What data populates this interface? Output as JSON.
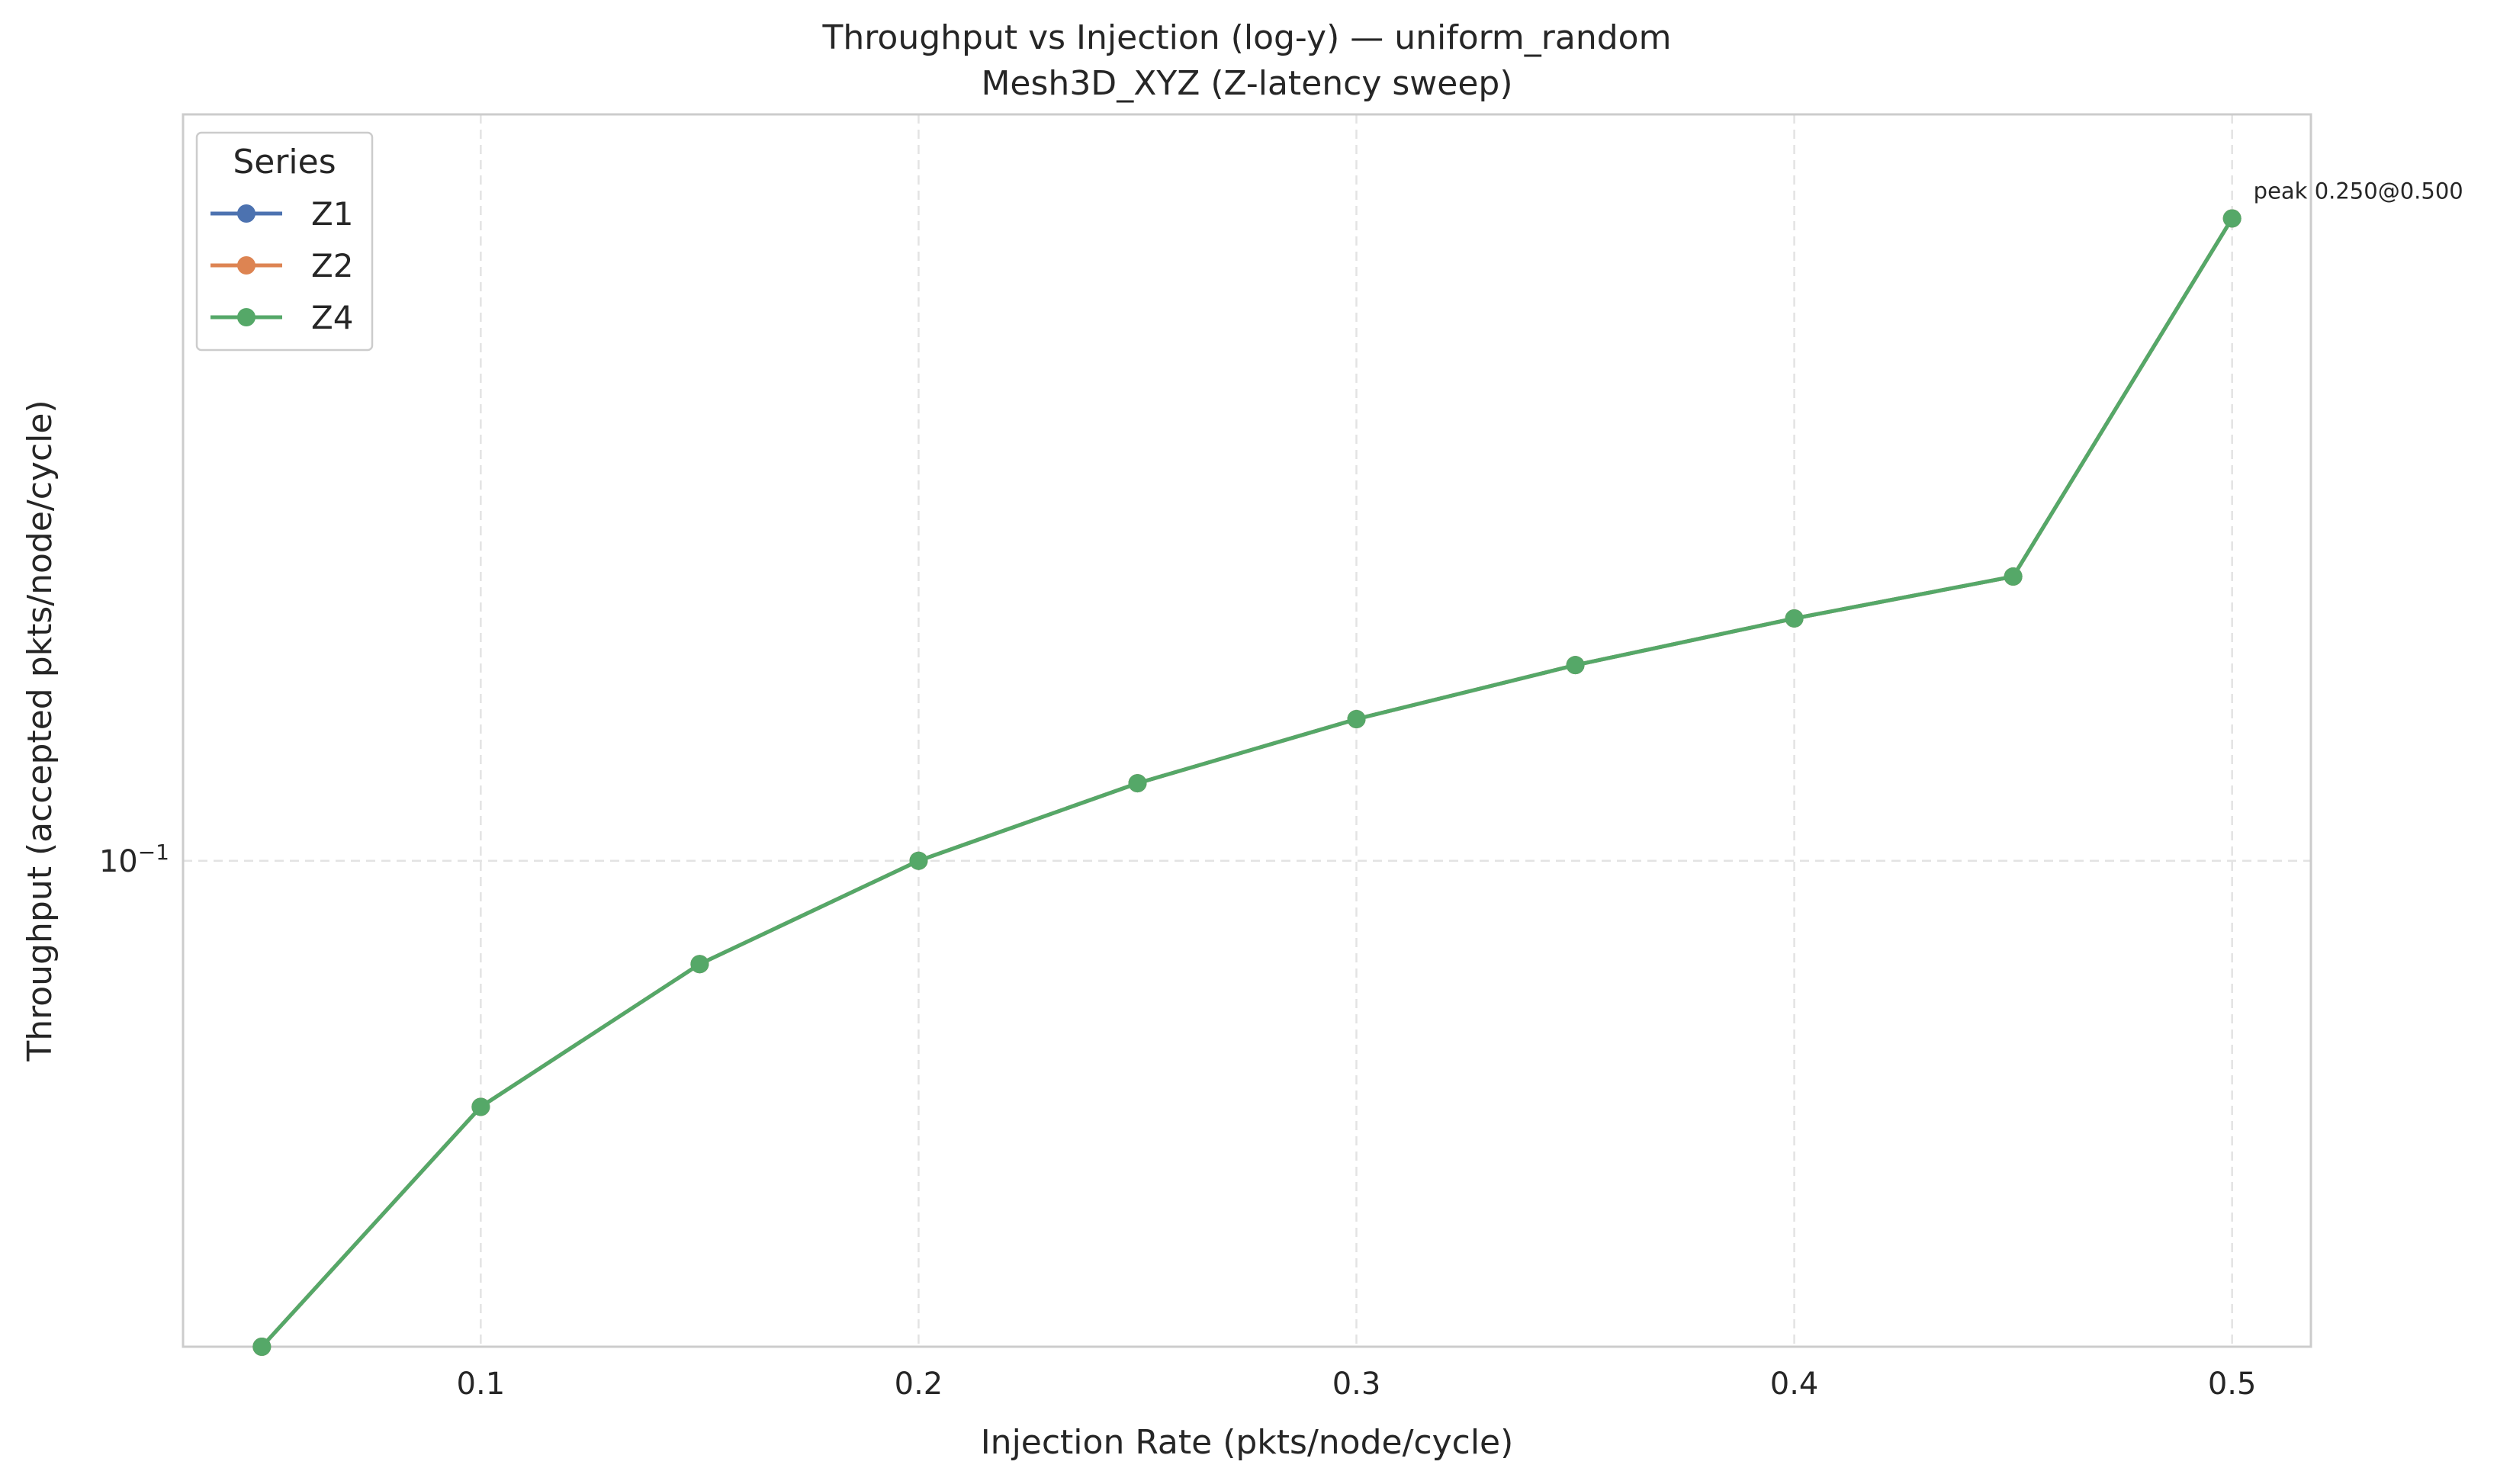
{
  "chart_data": {
    "type": "line",
    "title": "Throughput vs Injection (log-y) — uniform_random",
    "subtitle": "Mesh3D_XYZ (Z-latency sweep)",
    "xlabel": "Injection Rate (pkts/node/cycle)",
    "ylabel": "Throughput (accepted pkts/node/cycle)",
    "xlim": [
      0.032,
      0.518
    ],
    "ylim": [
      0.05,
      0.29
    ],
    "yscale": "log",
    "grid": true,
    "x_ticks": [
      0.1,
      0.2,
      0.3,
      0.4,
      0.5
    ],
    "x_tick_labels": [
      "0.1",
      "0.2",
      "0.3",
      "0.4",
      "0.5"
    ],
    "y_ticks": [
      0.1
    ],
    "y_tick_label_base": "10",
    "y_tick_label_exp": "−1",
    "legend": {
      "title": "Series",
      "position": "top-left"
    },
    "x": [
      0.05,
      0.1,
      0.15,
      0.2,
      0.25,
      0.3,
      0.35,
      0.4,
      0.45,
      0.5
    ],
    "series": [
      {
        "name": "Z1",
        "color": "#4c72b0",
        "values": [
          0.05,
          0.0704,
          0.0863,
          0.1,
          0.1117,
          0.1224,
          0.1322,
          0.1413,
          0.15,
          0.25
        ]
      },
      {
        "name": "Z2",
        "color": "#dd8452",
        "values": [
          0.05,
          0.0704,
          0.0863,
          0.1,
          0.1117,
          0.1224,
          0.1322,
          0.1413,
          0.15,
          0.25
        ]
      },
      {
        "name": "Z4",
        "color": "#55a868",
        "values": [
          0.05,
          0.0704,
          0.0863,
          0.1,
          0.1117,
          0.1224,
          0.1322,
          0.1413,
          0.15,
          0.25
        ]
      }
    ],
    "annotation": {
      "text": "peak 0.250@0.500",
      "x": 0.5,
      "y": 0.25
    }
  }
}
